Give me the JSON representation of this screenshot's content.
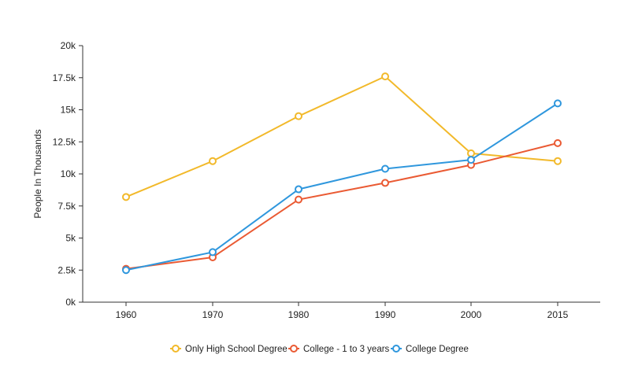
{
  "chart_data": {
    "type": "line",
    "title": "",
    "xlabel": "",
    "ylabel": "People In Thousands",
    "x": [
      "1960",
      "1970",
      "1980",
      "1990",
      "2000",
      "2015"
    ],
    "ylim": [
      0,
      20000
    ],
    "yticks": [
      0,
      2500,
      5000,
      7500,
      10000,
      12500,
      15000,
      17500,
      20000
    ],
    "ytick_labels": [
      "0k",
      "2.5k",
      "5k",
      "7.5k",
      "10k",
      "12.5k",
      "15k",
      "17.5k",
      "20k"
    ],
    "grid": false,
    "legend_position": "bottom",
    "series": [
      {
        "name": "Only High School Degree",
        "color": "#f2b92a",
        "values": [
          8200,
          11000,
          14500,
          17600,
          11600,
          11000
        ]
      },
      {
        "name": "College - 1 to 3 years",
        "color": "#ea5a33",
        "values": [
          2600,
          3500,
          8000,
          9300,
          10700,
          12400
        ]
      },
      {
        "name": "College Degree",
        "color": "#2f97dd",
        "values": [
          2500,
          3900,
          8800,
          10400,
          11100,
          15500
        ]
      }
    ]
  }
}
